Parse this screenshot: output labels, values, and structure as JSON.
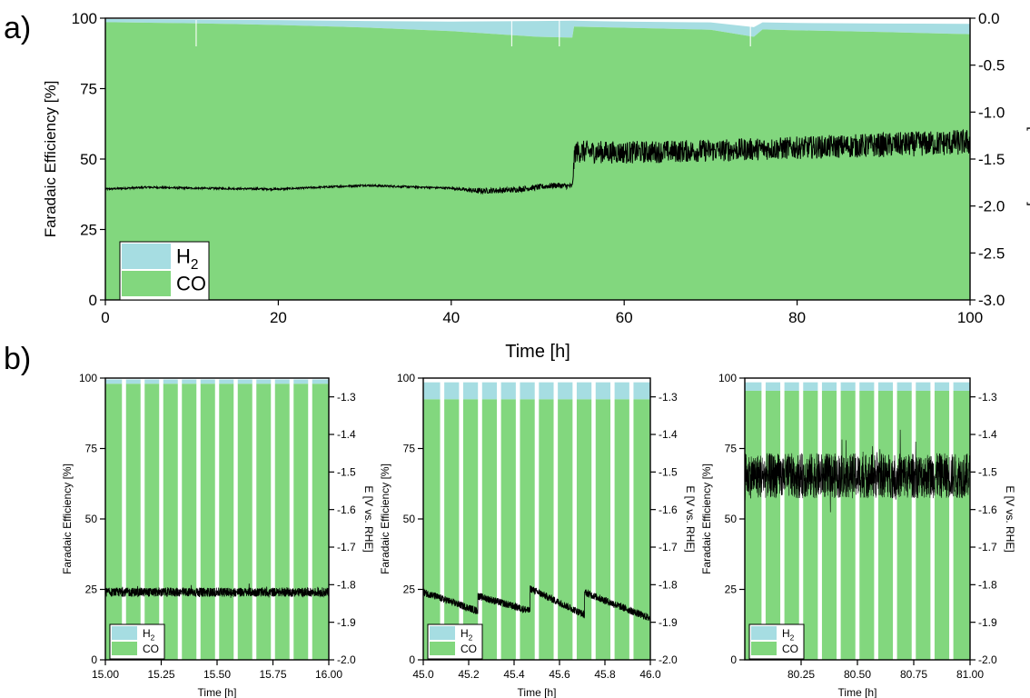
{
  "panel_labels": {
    "a": "a)",
    "b": "b)"
  },
  "colors": {
    "h2": "#a6dde2",
    "co": "#82d77e",
    "potential": "#000000",
    "gap": "#ffffff"
  },
  "chart_data": [
    {
      "id": "a",
      "type": "area",
      "xlabel": "Time [h]",
      "ylabel": "Faradaic Efficiency [%]",
      "y2label": "E [V vs. RHE]",
      "xlim": [
        0,
        100
      ],
      "ylim": [
        0,
        100
      ],
      "y2lim": [
        -3.0,
        0.0
      ],
      "xticks": [
        0,
        20,
        40,
        60,
        80,
        100
      ],
      "xtick_labels": [
        "0",
        "20",
        "40",
        "60",
        "80",
        "100"
      ],
      "yticks": [
        0,
        25,
        50,
        75,
        100
      ],
      "ytick_labels": [
        "0",
        "25",
        "50",
        "75",
        "100"
      ],
      "y2ticks": [
        0.0,
        -0.5,
        -1.0,
        -1.5,
        -2.0,
        -2.5,
        -3.0
      ],
      "y2tick_labels": [
        "0.0",
        "-0.5",
        "-1.0",
        "-1.5",
        "-2.0",
        "-2.5",
        "-3.0"
      ],
      "legend": {
        "placement": "bottom-left",
        "entries": [
          "H2",
          "CO"
        ]
      },
      "series": [
        {
          "name": "CO",
          "x": [
            0,
            10,
            20,
            30,
            40,
            50,
            54,
            54.2,
            60,
            70,
            75,
            76,
            80,
            90,
            100
          ],
          "values": [
            98.6,
            98.2,
            97.6,
            96.7,
            95.4,
            93.4,
            93.1,
            97.0,
            96.6,
            95.9,
            93.4,
            96.0,
            95.7,
            95.1,
            94.3
          ]
        },
        {
          "name": "H2",
          "x": [
            0,
            10,
            20,
            30,
            40,
            50,
            54,
            54.2,
            60,
            70,
            75,
            76,
            80,
            90,
            100
          ],
          "values": [
            1.1,
            1.3,
            1.7,
            2.3,
            3.4,
            5.6,
            6.0,
            2.1,
            2.2,
            2.6,
            3.4,
            2.5,
            2.6,
            3.0,
            3.7
          ]
        },
        {
          "name": "E",
          "axis": "right",
          "x": [
            0,
            5,
            10,
            20,
            30,
            40,
            43,
            47,
            52,
            54,
            54.3,
            60,
            70,
            80,
            90,
            100
          ],
          "values": [
            -1.82,
            -1.8,
            -1.81,
            -1.82,
            -1.78,
            -1.81,
            -1.84,
            -1.83,
            -1.78,
            -1.79,
            -1.42,
            -1.43,
            -1.41,
            -1.38,
            -1.35,
            -1.32
          ],
          "noise": [
            0.01,
            0.01,
            0.01,
            0.01,
            0.01,
            0.01,
            0.03,
            0.03,
            0.03,
            0.03,
            0.12,
            0.12,
            0.12,
            0.12,
            0.13,
            0.14
          ]
        }
      ]
    },
    {
      "id": "b1",
      "type": "bar",
      "xlabel": "Time [h]",
      "ylabel": "Faradaic Efficiency [%]",
      "y2label": "E [V vs. RHE]",
      "xlim": [
        15.0,
        16.0
      ],
      "ylim": [
        0,
        100
      ],
      "y2lim": [
        -2.0,
        -1.25
      ],
      "xticks": [
        15.0,
        15.25,
        15.5,
        15.75,
        16.0
      ],
      "xtick_labels": [
        "15.00",
        "15.25",
        "15.50",
        "15.75",
        "16.00"
      ],
      "yticks": [
        0,
        25,
        50,
        75,
        100
      ],
      "ytick_labels": [
        "0",
        "25",
        "50",
        "75",
        "100"
      ],
      "y2ticks": [
        -1.3,
        -1.4,
        -1.5,
        -1.6,
        -1.7,
        -1.8,
        -1.9,
        -2.0
      ],
      "y2tick_labels": [
        "-1.3",
        "-1.4",
        "-1.5",
        "-1.6",
        "-1.7",
        "-1.8",
        "-1.9",
        "-2.0"
      ],
      "legend": {
        "placement": "bottom-left",
        "entries": [
          "H2",
          "CO"
        ]
      },
      "bars": {
        "count": 12,
        "co": 98.0,
        "h2": 1.5
      },
      "potential": {
        "mean": -1.82,
        "noise": 0.012,
        "drift": 0.0
      }
    },
    {
      "id": "b2",
      "type": "bar",
      "xlabel": "Time [h]",
      "ylabel": "Faradaic Efficiency [%]",
      "y2label": "E [V vs. RHE]",
      "xlim": [
        45.0,
        46.0
      ],
      "ylim": [
        0,
        100
      ],
      "y2lim": [
        -2.0,
        -1.25
      ],
      "xticks": [
        45.0,
        45.2,
        45.4,
        45.6,
        45.8,
        46.0
      ],
      "xtick_labels": [
        "45.0",
        "45.2",
        "45.4",
        "45.6",
        "45.8",
        "46.0"
      ],
      "yticks": [
        0,
        25,
        50,
        75,
        100
      ],
      "ytick_labels": [
        "0",
        "25",
        "50",
        "75",
        "100"
      ],
      "y2ticks": [
        -1.3,
        -1.4,
        -1.5,
        -1.6,
        -1.7,
        -1.8,
        -1.9,
        -2.0
      ],
      "y2tick_labels": [
        "-1.3",
        "-1.4",
        "-1.5",
        "-1.6",
        "-1.7",
        "-1.8",
        "-1.9",
        "-2.0"
      ],
      "legend": {
        "placement": "bottom-left",
        "entries": [
          "H2",
          "CO"
        ]
      },
      "bars": {
        "count": 12,
        "co": 92.5,
        "h2": 6.0
      },
      "potential": {
        "segments": [
          [
            45.0,
            45.24,
            -1.82,
            -1.87
          ],
          [
            45.24,
            45.47,
            -1.83,
            -1.87
          ],
          [
            45.47,
            45.71,
            -1.81,
            -1.88
          ],
          [
            45.71,
            46.0,
            -1.82,
            -1.89
          ]
        ],
        "noise": 0.01
      }
    },
    {
      "id": "b3",
      "type": "bar",
      "xlabel": "Time [h]",
      "ylabel": "Faradaic Efficiency [%]",
      "y2label": "E [V vs. RHE]",
      "xlim": [
        80.0,
        81.0
      ],
      "ylim": [
        0,
        100
      ],
      "y2lim": [
        -2.0,
        -1.25
      ],
      "xticks": [
        80.25,
        80.5,
        80.75,
        81.0
      ],
      "xtick_labels": [
        "80.25",
        "80.50",
        "80.75",
        "81.00"
      ],
      "yticks": [
        0,
        25,
        50,
        75,
        100
      ],
      "ytick_labels": [
        "0",
        "25",
        "50",
        "75",
        "100"
      ],
      "y2ticks": [
        -1.3,
        -1.4,
        -1.5,
        -1.6,
        -1.7,
        -1.8,
        -1.9,
        -2.0
      ],
      "y2tick_labels": [
        "-1.3",
        "-1.4",
        "-1.5",
        "-1.6",
        "-1.7",
        "-1.8",
        "-1.9",
        "-2.0"
      ],
      "legend": {
        "placement": "bottom-left",
        "entries": [
          "H2",
          "CO"
        ]
      },
      "bars": {
        "count": 12,
        "co": 95.5,
        "h2": 3.0
      },
      "potential": {
        "mean": -1.51,
        "noise": 0.06,
        "drift": 0.0
      }
    }
  ]
}
